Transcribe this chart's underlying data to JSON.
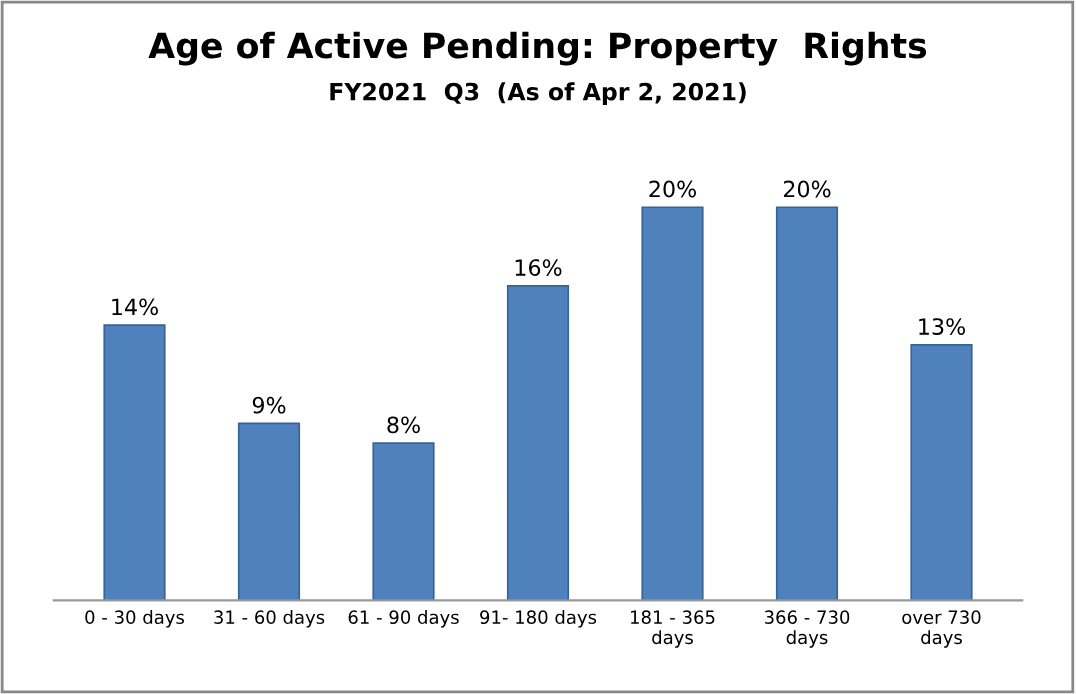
{
  "chart_data": {
    "type": "bar",
    "title": "Age of Active Pending: Property  Rights",
    "subtitle": "FY2021  Q3  (As of Apr 2, 2021)",
    "categories": [
      "0 - 30 days",
      "31 - 60 days",
      "61 - 90 days",
      "91- 180 days",
      "181 - 365\ndays",
      "366 - 730\ndays",
      "over 730\ndays"
    ],
    "values": [
      14,
      9,
      8,
      16,
      20,
      20,
      13
    ],
    "value_labels": [
      "14%",
      "9%",
      "8%",
      "16%",
      "20%",
      "20%",
      "13%"
    ],
    "color": "#4f81bd",
    "grid": false,
    "legend": false
  }
}
